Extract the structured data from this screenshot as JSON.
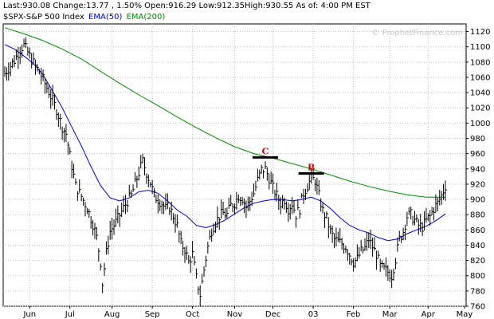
{
  "quote": {
    "last": "Last:930.08",
    "change": "Change:13.77 , 1.50%",
    "open": "Open:916.29",
    "low": "Low:912.35",
    "high": "High:930.55",
    "asof": "As of: 4:00 PM EST"
  },
  "legend": {
    "symbol": "$SPX-S&P 500 Index",
    "ema50": "EMA(50)",
    "ema200": "EMA(200)"
  },
  "watermark": "© ProphetFinance.com",
  "colors": {
    "price": "#000000",
    "ema50": "#0000cc",
    "ema200": "#008800",
    "grid": "#c0c0c0",
    "annotation": "#cc0000"
  },
  "chart_data": {
    "type": "line",
    "title": "",
    "xlabel": "",
    "ylabel": "",
    "ylim": [
      760,
      1130
    ],
    "yticks": [
      760,
      780,
      800,
      820,
      840,
      860,
      880,
      900,
      920,
      940,
      960,
      980,
      1000,
      1020,
      1040,
      1060,
      1080,
      1100,
      1120
    ],
    "x_index_range": [
      0,
      230
    ],
    "month_ticks": [
      {
        "label": "Jun",
        "index": 13
      },
      {
        "label": "Jul",
        "index": 34
      },
      {
        "label": "Aug",
        "index": 56
      },
      {
        "label": "Sep",
        "index": 77
      },
      {
        "label": "Oct",
        "index": 98
      },
      {
        "label": "Nov",
        "index": 120
      },
      {
        "label": "Dec",
        "index": 140
      },
      {
        "label": "03",
        "index": 161
      },
      {
        "label": "Feb",
        "index": 182
      },
      {
        "label": "Mar",
        "index": 201
      },
      {
        "label": "Apr",
        "index": 221
      },
      {
        "label": "May",
        "index": 240
      }
    ],
    "grid": true,
    "series": [
      {
        "name": "$SPX-S&P 500 Index",
        "style": "hlc-bars",
        "points": [
          [
            0,
            1065
          ],
          [
            5,
            1082
          ],
          [
            8,
            1097
          ],
          [
            10,
            1102
          ],
          [
            13,
            1088
          ],
          [
            16,
            1074
          ],
          [
            18,
            1068
          ],
          [
            20,
            1057
          ],
          [
            23,
            1041
          ],
          [
            27,
            1018
          ],
          [
            30,
            995
          ],
          [
            32,
            986
          ],
          [
            34,
            957
          ],
          [
            37,
            918
          ],
          [
            40,
            904
          ],
          [
            43,
            889
          ],
          [
            46,
            868
          ],
          [
            48,
            850
          ],
          [
            50,
            818
          ],
          [
            51,
            790
          ],
          [
            53,
            830
          ],
          [
            55,
            858
          ],
          [
            58,
            870
          ],
          [
            61,
            884
          ],
          [
            64,
            898
          ],
          [
            66,
            905
          ],
          [
            68,
            920
          ],
          [
            70,
            935
          ],
          [
            72,
            950
          ],
          [
            74,
            935
          ],
          [
            76,
            922
          ],
          [
            78,
            905
          ],
          [
            80,
            900
          ],
          [
            82,
            895
          ],
          [
            84,
            888
          ],
          [
            86,
            890
          ],
          [
            88,
            878
          ],
          [
            90,
            865
          ],
          [
            92,
            842
          ],
          [
            94,
            835
          ],
          [
            96,
            818
          ],
          [
            98,
            828
          ],
          [
            100,
            797
          ],
          [
            102,
            775
          ],
          [
            104,
            808
          ],
          [
            106,
            838
          ],
          [
            108,
            860
          ],
          [
            110,
            870
          ],
          [
            112,
            878
          ],
          [
            114,
            882
          ],
          [
            116,
            880
          ],
          [
            118,
            892
          ],
          [
            120,
            895
          ],
          [
            122,
            905
          ],
          [
            124,
            902
          ],
          [
            126,
            890
          ],
          [
            128,
            898
          ],
          [
            130,
            908
          ],
          [
            132,
            925
          ],
          [
            134,
            938
          ],
          [
            136,
            940
          ],
          [
            138,
            928
          ],
          [
            140,
            915
          ],
          [
            142,
            905
          ],
          [
            144,
            895
          ],
          [
            146,
            900
          ],
          [
            148,
            888
          ],
          [
            150,
            895
          ],
          [
            152,
            880
          ],
          [
            154,
            888
          ],
          [
            156,
            908
          ],
          [
            158,
            918
          ],
          [
            160,
            928
          ],
          [
            162,
            925
          ],
          [
            164,
            905
          ],
          [
            166,
            885
          ],
          [
            168,
            875
          ],
          [
            170,
            858
          ],
          [
            172,
            848
          ],
          [
            174,
            845
          ],
          [
            176,
            842
          ],
          [
            178,
            838
          ],
          [
            180,
            828
          ],
          [
            182,
            818
          ],
          [
            184,
            822
          ],
          [
            186,
            832
          ],
          [
            188,
            836
          ],
          [
            190,
            848
          ],
          [
            192,
            838
          ],
          [
            194,
            828
          ],
          [
            196,
            812
          ],
          [
            198,
            808
          ],
          [
            200,
            805
          ],
          [
            202,
            800
          ],
          [
            204,
            822
          ],
          [
            206,
            848
          ],
          [
            208,
            858
          ],
          [
            210,
            878
          ],
          [
            212,
            880
          ],
          [
            214,
            873
          ],
          [
            216,
            866
          ],
          [
            218,
            864
          ],
          [
            220,
            872
          ],
          [
            222,
            878
          ],
          [
            224,
            888
          ],
          [
            226,
            895
          ],
          [
            228,
            905
          ],
          [
            230,
            918
          ]
        ]
      },
      {
        "name": "EMA(50)",
        "style": "line",
        "points": [
          [
            0,
            1103
          ],
          [
            5,
            1097
          ],
          [
            10,
            1088
          ],
          [
            15,
            1078
          ],
          [
            20,
            1063
          ],
          [
            25,
            1042
          ],
          [
            30,
            1020
          ],
          [
            35,
            995
          ],
          [
            40,
            970
          ],
          [
            45,
            943
          ],
          [
            50,
            918
          ],
          [
            55,
            902
          ],
          [
            60,
            898
          ],
          [
            65,
            902
          ],
          [
            70,
            910
          ],
          [
            75,
            912
          ],
          [
            80,
            908
          ],
          [
            85,
            898
          ],
          [
            90,
            886
          ],
          [
            95,
            878
          ],
          [
            100,
            866
          ],
          [
            105,
            863
          ],
          [
            110,
            867
          ],
          [
            115,
            873
          ],
          [
            120,
            881
          ],
          [
            125,
            889
          ],
          [
            130,
            895
          ],
          [
            135,
            898
          ],
          [
            140,
            900
          ],
          [
            145,
            900
          ],
          [
            150,
            898
          ],
          [
            155,
            900
          ],
          [
            160,
            903
          ],
          [
            165,
            898
          ],
          [
            170,
            888
          ],
          [
            175,
            876
          ],
          [
            180,
            866
          ],
          [
            185,
            860
          ],
          [
            190,
            856
          ],
          [
            195,
            850
          ],
          [
            200,
            846
          ],
          [
            205,
            848
          ],
          [
            210,
            855
          ],
          [
            215,
            860
          ],
          [
            220,
            865
          ],
          [
            225,
            872
          ],
          [
            230,
            881
          ]
        ]
      },
      {
        "name": "EMA(200)",
        "style": "line",
        "points": [
          [
            0,
            1125
          ],
          [
            10,
            1117
          ],
          [
            20,
            1108
          ],
          [
            30,
            1097
          ],
          [
            40,
            1084
          ],
          [
            50,
            1068
          ],
          [
            60,
            1052
          ],
          [
            70,
            1037
          ],
          [
            80,
            1023
          ],
          [
            90,
            1008
          ],
          [
            100,
            994
          ],
          [
            110,
            981
          ],
          [
            120,
            969
          ],
          [
            130,
            960
          ],
          [
            140,
            954
          ],
          [
            150,
            947
          ],
          [
            160,
            940
          ],
          [
            170,
            932
          ],
          [
            180,
            924
          ],
          [
            190,
            917
          ],
          [
            200,
            911
          ],
          [
            210,
            906
          ],
          [
            220,
            903
          ],
          [
            230,
            903
          ]
        ]
      }
    ],
    "annotations": [
      {
        "label": "C",
        "index": 136,
        "value": 955
      },
      {
        "label": "B",
        "index": 160,
        "value": 934
      }
    ]
  }
}
